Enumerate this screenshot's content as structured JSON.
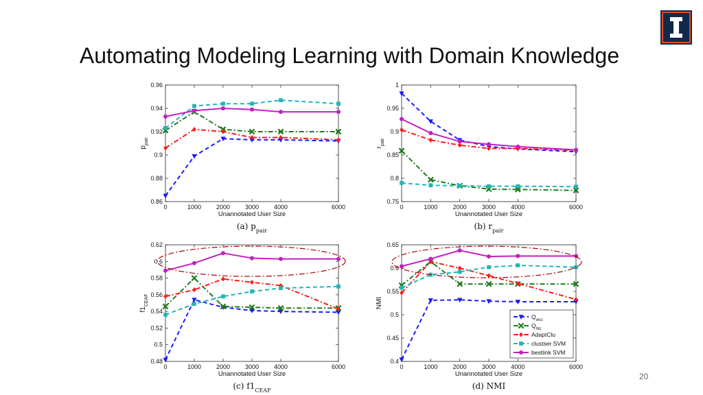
{
  "slide": {
    "title": "Automating Modeling Learning with Domain Knowledge",
    "page_number": "20"
  },
  "colors": {
    "Q_wcc": "#1a1aff",
    "Q_htc": "#1f7a1f",
    "AdaptClu": "#ff1a1a",
    "clustser_SVM": "#22b5b5",
    "bestlink_SVM": "#c21fc2",
    "ellipse": "#aa0000"
  },
  "chart_data": [
    {
      "type": "line",
      "caption": "(a) p",
      "caption_sub": "pair",
      "xlabel": "Unannotated User Size",
      "ylabel": "p",
      "ylabel_sub": "pair",
      "x": [
        0,
        1000,
        2000,
        3000,
        4000,
        6000
      ],
      "x_tick_labels": [
        "0",
        "1000",
        "2000",
        "3000",
        "4000",
        "6000"
      ],
      "ylim": [
        0.86,
        0.96
      ],
      "y_ticks": [
        0.86,
        0.88,
        0.9,
        0.92,
        0.94,
        0.96
      ],
      "y_tick_labels": [
        "0.86",
        "0.88",
        "0.9",
        "0.92",
        "0.94",
        "0.96"
      ],
      "series": [
        {
          "key": "Q_wcc",
          "values": [
            0.865,
            0.899,
            0.914,
            0.913,
            0.913,
            0.912
          ]
        },
        {
          "key": "Q_htc",
          "values": [
            0.921,
            0.937,
            0.922,
            0.92,
            0.92,
            0.92
          ]
        },
        {
          "key": "AdaptClu",
          "values": [
            0.906,
            0.922,
            0.92,
            0.915,
            0.915,
            0.913
          ]
        },
        {
          "key": "clustser_SVM",
          "values": [
            0.923,
            0.942,
            0.944,
            0.944,
            0.947,
            0.944
          ]
        },
        {
          "key": "bestlink_SVM",
          "values": [
            0.933,
            0.938,
            0.94,
            0.939,
            0.937,
            0.937
          ]
        }
      ]
    },
    {
      "type": "line",
      "caption": "(b) r",
      "caption_sub": "pair",
      "xlabel": "Unannotated User Size",
      "ylabel": "r",
      "ylabel_sub": "pair",
      "x": [
        0,
        1000,
        2000,
        3000,
        4000,
        6000
      ],
      "x_tick_labels": [
        "0",
        "1000",
        "2000",
        "3000",
        "4000",
        "6000"
      ],
      "ylim": [
        0.75,
        1.0
      ],
      "y_ticks": [
        0.75,
        0.8,
        0.85,
        0.9,
        0.95,
        1.0
      ],
      "y_tick_labels": [
        "0.75",
        "0.8",
        "0.85",
        "0.9",
        "0.95",
        "1"
      ],
      "series": [
        {
          "key": "Q_wcc",
          "values": [
            0.982,
            0.922,
            0.882,
            0.868,
            0.863,
            0.857
          ]
        },
        {
          "key": "Q_htc",
          "values": [
            0.859,
            0.797,
            0.784,
            0.777,
            0.776,
            0.774
          ]
        },
        {
          "key": "AdaptClu",
          "values": [
            0.904,
            0.882,
            0.871,
            0.864,
            0.864,
            0.86
          ]
        },
        {
          "key": "clustser_SVM",
          "values": [
            0.79,
            0.785,
            0.784,
            0.783,
            0.783,
            0.782
          ]
        },
        {
          "key": "bestlink_SVM",
          "values": [
            0.927,
            0.897,
            0.879,
            0.873,
            0.868,
            0.861
          ]
        }
      ]
    },
    {
      "type": "line",
      "caption": "(c) f1",
      "caption_sub": "CEAF",
      "xlabel": "Unannotated User Size",
      "ylabel": "f1",
      "ylabel_sub": "CEAF",
      "x": [
        0,
        1000,
        2000,
        3000,
        4000,
        6000
      ],
      "x_tick_labels": [
        "0",
        "1000",
        "2000",
        "3000",
        "4000",
        "6000"
      ],
      "ylim": [
        0.48,
        0.62
      ],
      "y_ticks": [
        0.48,
        0.5,
        0.52,
        0.54,
        0.56,
        0.58,
        0.6,
        0.62
      ],
      "y_tick_labels": [
        "0.48",
        "0.5",
        "0.52",
        "0.54",
        "0.56",
        "0.58",
        "0.6",
        "0.62"
      ],
      "series": [
        {
          "key": "Q_wcc",
          "values": [
            0.482,
            0.554,
            0.545,
            0.541,
            0.54,
            0.539
          ]
        },
        {
          "key": "Q_htc",
          "values": [
            0.546,
            0.58,
            0.546,
            0.545,
            0.544,
            0.544
          ]
        },
        {
          "key": "AdaptClu",
          "values": [
            0.558,
            0.566,
            0.579,
            0.575,
            0.571,
            0.543
          ]
        },
        {
          "key": "clustser_SVM",
          "values": [
            0.536,
            0.549,
            0.558,
            0.564,
            0.568,
            0.57
          ]
        },
        {
          "key": "bestlink_SVM",
          "values": [
            0.589,
            0.598,
            0.61,
            0.604,
            0.603,
            0.603
          ]
        }
      ],
      "highlight_ellipse": true
    },
    {
      "type": "line",
      "caption": "(d) NMI",
      "caption_sub": "",
      "xlabel": "Unannotated User Size",
      "ylabel": "NMI",
      "ylabel_sub": "",
      "x": [
        0,
        1000,
        2000,
        3000,
        4000,
        6000
      ],
      "x_tick_labels": [
        "0",
        "1000",
        "2000",
        "3000",
        "4000",
        "6000"
      ],
      "ylim": [
        0.4,
        0.65
      ],
      "y_ticks": [
        0.4,
        0.45,
        0.5,
        0.55,
        0.6,
        0.65
      ],
      "y_tick_labels": [
        "0.4",
        "0.45",
        "0.5",
        "0.55",
        "0.6",
        "0.65"
      ],
      "series": [
        {
          "key": "Q_wcc",
          "values": [
            0.404,
            0.531,
            0.532,
            0.529,
            0.528,
            0.528
          ]
        },
        {
          "key": "Q_htc",
          "values": [
            0.563,
            0.614,
            0.566,
            0.566,
            0.566,
            0.566
          ]
        },
        {
          "key": "AdaptClu",
          "values": [
            0.547,
            0.614,
            0.6,
            0.584,
            0.567,
            0.533
          ]
        },
        {
          "key": "clustser_SVM",
          "values": [
            0.558,
            0.586,
            0.592,
            0.602,
            0.606,
            0.602
          ]
        },
        {
          "key": "bestlink_SVM",
          "values": [
            0.604,
            0.62,
            0.638,
            0.625,
            0.626,
            0.626
          ]
        }
      ],
      "highlight_ellipse": true,
      "legend": "bottom-right"
    }
  ],
  "legend": {
    "entries": [
      {
        "key": "Q_wcc",
        "label": "Q",
        "sub": "wcc"
      },
      {
        "key": "Q_htc",
        "label": "Q",
        "sub": "htc"
      },
      {
        "key": "AdaptClu",
        "label": "AdaptClu",
        "sub": ""
      },
      {
        "key": "clustser_SVM",
        "label": "clustser SVM",
        "sub": ""
      },
      {
        "key": "bestlink_SVM",
        "label": "bestlink SVM",
        "sub": ""
      }
    ]
  },
  "styles": {
    "Q_wcc": {
      "dash": "6,4",
      "marker": "triangle-down"
    },
    "Q_htc": {
      "dash": "7,3,2,3",
      "marker": "x"
    },
    "AdaptClu": {
      "dash": "7,3,2,3",
      "marker": "diamond"
    },
    "clustser_SVM": {
      "dash": "6,4",
      "marker": "square"
    },
    "bestlink_SVM": {
      "dash": "",
      "marker": "circle"
    }
  }
}
